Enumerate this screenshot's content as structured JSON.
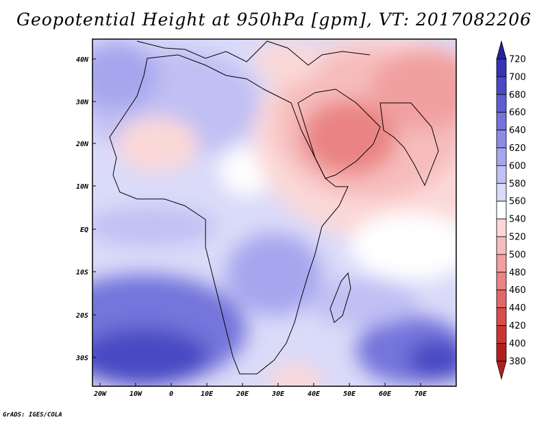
{
  "title": "Geopotential Height at 950hPa [gpm], VT: 2017082206",
  "credit": "GrADS: IGES/COLA",
  "map": {
    "lat_labels": [
      "40N",
      "30N",
      "20N",
      "10N",
      "EQ",
      "10S",
      "20S",
      "30S"
    ],
    "lon_labels": [
      "20W",
      "10W",
      "0",
      "10E",
      "20E",
      "30E",
      "40E",
      "50E",
      "60E",
      "70E"
    ]
  },
  "colorbar": {
    "levels": [
      "720",
      "700",
      "680",
      "660",
      "640",
      "620",
      "600",
      "580",
      "560",
      "540",
      "520",
      "500",
      "480",
      "460",
      "440",
      "420",
      "400",
      "380"
    ],
    "colors": [
      "#2424a0",
      "#3434b4",
      "#4a4ac4",
      "#5e5ed0",
      "#7474dc",
      "#8c8ce6",
      "#a6a6ee",
      "#c0c0f4",
      "#dadaf9",
      "#ffffff",
      "#fbd8d8",
      "#f7bcbc",
      "#f1a0a0",
      "#ea8484",
      "#e26868",
      "#d84c4c",
      "#cc3434",
      "#b02020"
    ]
  }
}
